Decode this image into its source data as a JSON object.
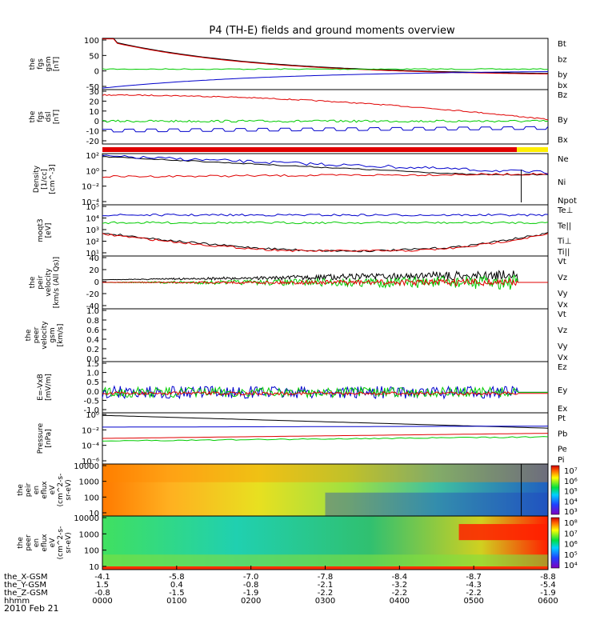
{
  "title": "P4 (TH-E) fields and ground moments overview",
  "date_label": "2010 Feb 21",
  "ephemeris": {
    "rows": [
      {
        "label": "the_X-GSM",
        "values": [
          "-4.1",
          "-5.8",
          "-7.0",
          "-7.8",
          "-8.4",
          "-8.7",
          "-8.8"
        ]
      },
      {
        "label": "the_Y-GSM",
        "values": [
          "1.5",
          "0.4",
          "-0.8",
          "-2.1",
          "-3.2",
          "-4.3",
          "-5.4"
        ]
      },
      {
        "label": "the_Z-GSM",
        "values": [
          "-0.8",
          "-1.5",
          "-1.9",
          "-2.2",
          "-2.2",
          "-2.2",
          "-1.9"
        ]
      },
      {
        "label": "hhmm",
        "values": [
          "0000",
          "0100",
          "0200",
          "0300",
          "0400",
          "0500",
          "0600"
        ]
      }
    ]
  },
  "colors": {
    "black": "#000000",
    "red": "#e00000",
    "green": "#00cc00",
    "blue": "#0000cc",
    "yellow": "#ffee00"
  },
  "chart_data": [
    {
      "type": "line",
      "ylabel_lines": [
        "the",
        "fgs",
        "gsm",
        "[nT]"
      ],
      "yticks": [
        "100",
        "50",
        "0",
        "-50"
      ],
      "ylim": [
        -50,
        100
      ],
      "legend": [
        {
          "name": "Bt",
          "color": "#000000"
        },
        {
          "name": "bz",
          "color": "#e00000"
        },
        {
          "name": "by",
          "color": "#00cc00"
        },
        {
          "name": "bx",
          "color": "#0000cc"
        }
      ]
    },
    {
      "type": "line",
      "ylabel_lines": [
        "the",
        "fgs",
        "dsl",
        "[nT]"
      ],
      "yticks": [
        "30",
        "20",
        "10",
        "0",
        "-10",
        "-20"
      ],
      "ylim": [
        -20,
        30
      ],
      "legend": [
        {
          "name": "Bz",
          "color": "#e00000"
        },
        {
          "name": "By",
          "color": "#00cc00"
        },
        {
          "name": "Bx",
          "color": "#0000cc"
        }
      ]
    },
    {
      "type": "line",
      "ylabel_lines": [
        "Density",
        "[1/cc]",
        "[cm^-3]"
      ],
      "yticks": [
        "10²",
        "10⁰",
        "10⁻²",
        "10⁻⁴"
      ],
      "ylim": [
        -4,
        2
      ],
      "legend": [
        {
          "name": "Ne",
          "color": "#e00000"
        },
        {
          "name": "Ni",
          "color": "#000000"
        },
        {
          "name": "Npot",
          "color": "#0000cc"
        }
      ]
    },
    {
      "type": "line",
      "ylabel_lines": [
        "moqt3",
        "[eV]"
      ],
      "yticks": [
        "10⁵",
        "10⁴",
        "10³",
        "10²",
        "10¹"
      ],
      "ylim": [
        1,
        5
      ],
      "legend": [
        {
          "name": "Te⊥",
          "color": "#e00000"
        },
        {
          "name": "Te||",
          "color": "#000000"
        },
        {
          "name": "Ti⊥",
          "color": "#0000cc"
        },
        {
          "name": "Ti||",
          "color": "#00cc00"
        }
      ]
    },
    {
      "type": "line",
      "ylabel_lines": [
        "the",
        "peir",
        "velocity",
        "[km/s (All Qs)]"
      ],
      "yticks": [
        "40",
        "20",
        "0",
        "-20",
        "-40"
      ],
      "ylim": [
        -40,
        40
      ],
      "legend": [
        {
          "name": "Vt",
          "color": "#000000"
        },
        {
          "name": "Vz",
          "color": "#e00000"
        },
        {
          "name": "Vy",
          "color": "#00cc00"
        },
        {
          "name": "Vx",
          "color": "#0000cc"
        }
      ]
    },
    {
      "type": "line",
      "ylabel_lines": [
        "the",
        "peer",
        "velocity",
        "gsm",
        "[km/s]"
      ],
      "yticks": [
        "1.0",
        "0.8",
        "0.6",
        "0.4",
        "0.2",
        "0.0"
      ],
      "ylim": [
        0,
        1
      ],
      "legend": [
        {
          "name": "Vt",
          "color": "#000000"
        },
        {
          "name": "Vz",
          "color": "#e00000"
        },
        {
          "name": "Vy",
          "color": "#00cc00"
        },
        {
          "name": "Vx",
          "color": "#0000cc"
        }
      ]
    },
    {
      "type": "line",
      "ylabel_lines": [
        "E=-VxB",
        "[mV/m]"
      ],
      "yticks": [
        "1.5",
        "1.0",
        "0.5",
        "0.0",
        "-0.5",
        "-1.0"
      ],
      "ylim": [
        -1,
        1.5
      ],
      "legend": [
        {
          "name": "Ez",
          "color": "#e00000"
        },
        {
          "name": "Ey",
          "color": "#00cc00"
        },
        {
          "name": "Ex",
          "color": "#0000cc"
        }
      ]
    },
    {
      "type": "line",
      "ylabel_lines": [
        "Pressure",
        "[nPa]"
      ],
      "yticks": [
        "10⁰",
        "10⁻²",
        "10⁻⁴",
        "10⁻⁶"
      ],
      "ylim": [
        -6,
        0
      ],
      "legend": [
        {
          "name": "Pt",
          "color": "#000000"
        },
        {
          "name": "Pb",
          "color": "#e00000"
        },
        {
          "name": "Pe",
          "color": "#00cc00"
        },
        {
          "name": "Pi",
          "color": "#0000cc"
        }
      ]
    },
    {
      "type": "heatmap",
      "ylabel_lines": [
        "the",
        "peir",
        "en",
        "eflux",
        "eV",
        "(cm^2-s-",
        "sr-eV)"
      ],
      "yticks": [
        "10000",
        "1000",
        "100",
        "10"
      ],
      "ylim": [
        5,
        20000
      ],
      "colorbar_ticks": [
        "10⁷",
        "10⁶",
        "10⁵",
        "10⁴",
        "10³"
      ]
    },
    {
      "type": "heatmap",
      "ylabel_lines": [
        "the",
        "peer",
        "en",
        "eflux",
        "eV",
        "(cm^2-s-",
        "sr-eV)"
      ],
      "yticks": [
        "10000",
        "1000",
        "100",
        "10"
      ],
      "ylim": [
        5,
        20000
      ],
      "colorbar_ticks": [
        "10⁸",
        "10⁷",
        "10⁶",
        "10⁵",
        "10⁴"
      ]
    }
  ]
}
